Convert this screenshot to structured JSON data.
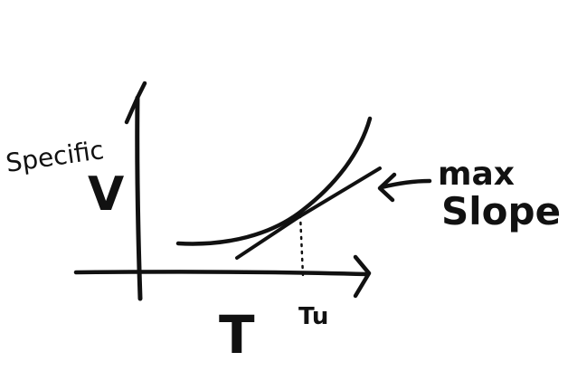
{
  "diagram": {
    "y_label_line1": "Specific",
    "y_label_line2": "V",
    "x_label": "T",
    "x_marker_label": "Tu",
    "annotation_line1": "max",
    "annotation_line2": "Slope"
  },
  "colors": {
    "ink": "#111111",
    "background": "#ffffff"
  },
  "elements": [
    "y-axis-arrow",
    "x-axis-arrow",
    "curve",
    "tangent-line",
    "dotted-drop-line",
    "annotation-arrow"
  ]
}
